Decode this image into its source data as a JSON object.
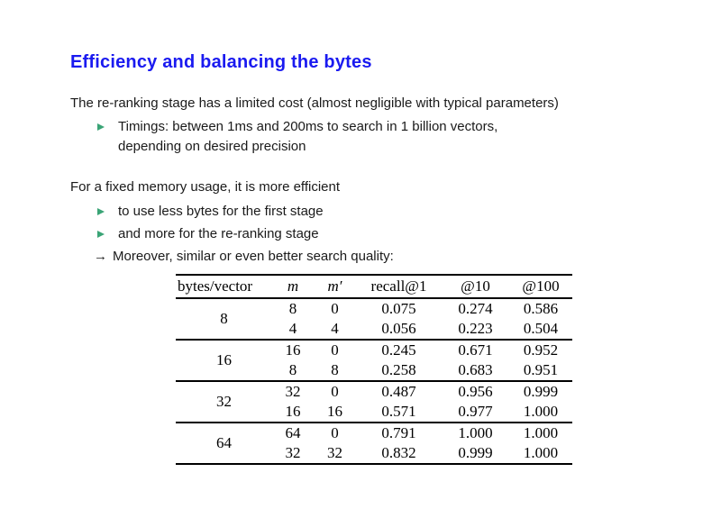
{
  "slide": {
    "title": "Efficiency and balancing the bytes",
    "para1": "The re-ranking stage has a limited cost (almost negligible with typical parameters)",
    "bullet1_line1": "Timings: between 1ms and 200ms to search in 1 billion vectors,",
    "bullet1_line2": "depending on desired precision",
    "para2": "For a fixed memory usage, it is more efficient",
    "bullet2": "to use less bytes for the first stage",
    "bullet3": "and more for the re-ranking stage",
    "arrow_glyph": "→",
    "arrow_text": "Moreover, similar or even better search quality:"
  },
  "icons": {
    "bullet_triangle": "right-pointing solid triangle"
  },
  "colors": {
    "title_blue": "#1a1af0",
    "bullet_green": "#3aa476",
    "text": "#1a1a1a",
    "table_text": "#000000",
    "background": "#ffffff"
  },
  "chart_data": {
    "type": "table",
    "headers": [
      "bytes/vector",
      "m",
      "m′",
      "recall@1",
      "@10",
      "@100"
    ],
    "groups": [
      {
        "bytes": "8",
        "rows": [
          [
            "8",
            "0",
            "0.075",
            "0.274",
            "0.586"
          ],
          [
            "4",
            "4",
            "0.056",
            "0.223",
            "0.504"
          ]
        ]
      },
      {
        "bytes": "16",
        "rows": [
          [
            "16",
            "0",
            "0.245",
            "0.671",
            "0.952"
          ],
          [
            "8",
            "8",
            "0.258",
            "0.683",
            "0.951"
          ]
        ]
      },
      {
        "bytes": "32",
        "rows": [
          [
            "32",
            "0",
            "0.487",
            "0.956",
            "0.999"
          ],
          [
            "16",
            "16",
            "0.571",
            "0.977",
            "1.000"
          ]
        ]
      },
      {
        "bytes": "64",
        "rows": [
          [
            "64",
            "0",
            "0.791",
            "1.000",
            "1.000"
          ],
          [
            "32",
            "32",
            "0.832",
            "0.999",
            "1.000"
          ]
        ]
      }
    ]
  }
}
